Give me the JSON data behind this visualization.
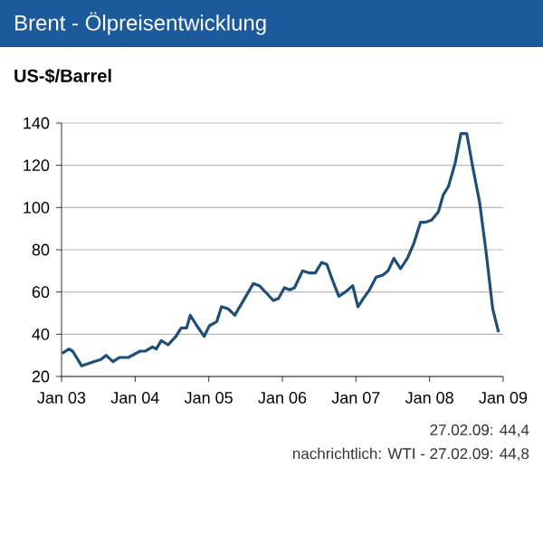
{
  "chart_data": {
    "type": "line",
    "title": "Brent - Ölpreisentwicklung",
    "ylabel": "US-$/Barrel",
    "annotations": [
      "27.02.09: 44,4",
      "nachrichtlich: WTI - 27.02.09: 44,8"
    ],
    "x": [
      "2003-01-04",
      "2003-02-07",
      "2003-02-25",
      "2003-04-11",
      "2003-06-09",
      "2003-07-15",
      "2003-08-10",
      "2003-09-13",
      "2003-10-15",
      "2003-11-28",
      "2004-01-26",
      "2004-02-21",
      "2004-03-27",
      "2004-04-15",
      "2004-05-10",
      "2004-06-13",
      "2004-07-22",
      "2004-08-17",
      "2004-09-13",
      "2004-10-01",
      "2004-11-03",
      "2004-12-09",
      "2005-01-04",
      "2005-02-10",
      "2005-03-05",
      "2005-04-08",
      "2005-05-10",
      "2005-06-16",
      "2005-08-10",
      "2005-09-09",
      "2005-10-19",
      "2005-11-17",
      "2005-12-13",
      "2006-01-11",
      "2006-02-07",
      "2006-03-02",
      "2006-04-11",
      "2006-05-17",
      "2006-06-13",
      "2006-07-15",
      "2006-08-10",
      "2006-09-05",
      "2006-10-08",
      "2006-11-10",
      "2006-12-16",
      "2007-01-11",
      "2007-02-07",
      "2007-03-09",
      "2007-04-11",
      "2007-05-14",
      "2007-06-09",
      "2007-07-08",
      "2007-08-10",
      "2007-09-13",
      "2007-10-15",
      "2007-11-17",
      "2007-12-09",
      "2008-01-11",
      "2008-02-14",
      "2008-03-09",
      "2008-04-04",
      "2008-05-07",
      "2008-06-05",
      "2008-07-04",
      "2008-08-03",
      "2008-09-05",
      "2008-10-08",
      "2008-11-10",
      "2008-12-09"
    ],
    "series": [
      {
        "color": "#1f4e79",
        "values": [
          31,
          33,
          32,
          25,
          27,
          28,
          30,
          27,
          29,
          29,
          32,
          32,
          34,
          33,
          37,
          35,
          39,
          43,
          43,
          49,
          44,
          39,
          44,
          46,
          53,
          52,
          49,
          55,
          64,
          63,
          59,
          56,
          57,
          62,
          61,
          62,
          70,
          69,
          69,
          74,
          73,
          66,
          58,
          60,
          63,
          53,
          57,
          61,
          67,
          68,
          70,
          76,
          71,
          76,
          83,
          93,
          93,
          94,
          98,
          106,
          110,
          121,
          135,
          135,
          119,
          103,
          79,
          52,
          41
        ]
      }
    ],
    "xlim": [
      "2003-01",
      "2009-01"
    ],
    "xticks": [
      {
        "value": "2003-01",
        "label": "Jan 03"
      },
      {
        "value": "2004-01",
        "label": "Jan 04"
      },
      {
        "value": "2005-01",
        "label": "Jan 05"
      },
      {
        "value": "2006-01",
        "label": "Jan 06"
      },
      {
        "value": "2007-01",
        "label": "Jan 07"
      },
      {
        "value": "2008-01",
        "label": "Jan 08"
      },
      {
        "value": "2009-01",
        "label": "Jan 09"
      }
    ],
    "ylim": [
      20,
      140
    ],
    "yticks": [
      20,
      40,
      60,
      80,
      100,
      120,
      140
    ],
    "grid": "y",
    "line_style": "solid"
  }
}
